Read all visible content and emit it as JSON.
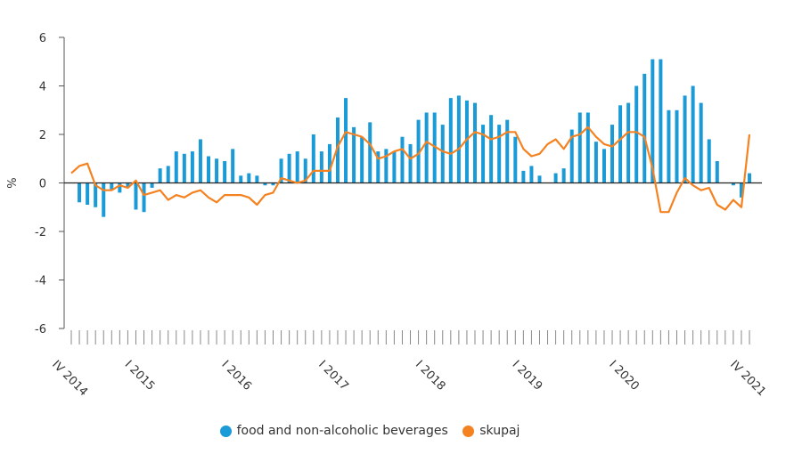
{
  "chart_data": {
    "type": "bar+line",
    "ylabel": "%",
    "ylim": [
      -6,
      6
    ],
    "yticks": [
      6,
      4,
      2,
      0,
      -2,
      -4,
      -6
    ],
    "x_tick_labels": [
      "IV 2014",
      "I 2015",
      "I 2016",
      "I 2017",
      "I 2018",
      "I 2019",
      "I 2020",
      "IV 2021"
    ],
    "x_tick_label_months": [
      "2014-04",
      "2015-01",
      "2016-01",
      "2017-01",
      "2018-01",
      "2019-01",
      "2020-01",
      "2021-04"
    ],
    "months": [
      "2014-04",
      "2014-05",
      "2014-06",
      "2014-07",
      "2014-08",
      "2014-09",
      "2014-10",
      "2014-11",
      "2014-12",
      "2015-01",
      "2015-02",
      "2015-03",
      "2015-04",
      "2015-05",
      "2015-06",
      "2015-07",
      "2015-08",
      "2015-09",
      "2015-10",
      "2015-11",
      "2015-12",
      "2016-01",
      "2016-02",
      "2016-03",
      "2016-04",
      "2016-05",
      "2016-06",
      "2016-07",
      "2016-08",
      "2016-09",
      "2016-10",
      "2016-11",
      "2016-12",
      "2017-01",
      "2017-02",
      "2017-03",
      "2017-04",
      "2017-05",
      "2017-06",
      "2017-07",
      "2017-08",
      "2017-09",
      "2017-10",
      "2017-11",
      "2017-12",
      "2018-01",
      "2018-02",
      "2018-03",
      "2018-04",
      "2018-05",
      "2018-06",
      "2018-07",
      "2018-08",
      "2018-09",
      "2018-10",
      "2018-11",
      "2018-12",
      "2019-01",
      "2019-02",
      "2019-03",
      "2019-04",
      "2019-05",
      "2019-06",
      "2019-07",
      "2019-08",
      "2019-09",
      "2019-10",
      "2019-11",
      "2019-12",
      "2020-01",
      "2020-02",
      "2020-03",
      "2020-04",
      "2020-05",
      "2020-06",
      "2020-07",
      "2020-08",
      "2020-09",
      "2020-10",
      "2020-11",
      "2020-12",
      "2021-01",
      "2021-02",
      "2021-03",
      "2021-04"
    ],
    "series": [
      {
        "name": "food and non-alcoholic beverages",
        "type": "bar",
        "color": "#1a9bd7",
        "values": [
          0,
          -0.8,
          -0.9,
          -1.0,
          -1.4,
          -0.3,
          -0.4,
          -0.2,
          -1.1,
          -1.2,
          -0.2,
          0.6,
          0.7,
          1.3,
          1.2,
          1.3,
          1.8,
          1.1,
          1.0,
          0.9,
          1.4,
          0.3,
          0.4,
          0.3,
          -0.1,
          -0.1,
          1.0,
          1.2,
          1.3,
          1.0,
          2.0,
          1.3,
          1.6,
          2.7,
          3.5,
          2.3,
          1.9,
          2.5,
          1.3,
          1.4,
          1.3,
          1.9,
          1.6,
          2.6,
          2.9,
          2.9,
          2.4,
          3.5,
          3.6,
          3.4,
          3.3,
          2.4,
          2.8,
          2.4,
          2.6,
          1.9,
          0.5,
          0.7,
          0.3,
          0,
          0.4,
          0.6,
          2.2,
          2.9,
          2.9,
          1.7,
          1.4,
          2.4,
          3.2,
          3.3,
          4.0,
          4.5,
          5.1,
          5.1,
          3.0,
          3.0,
          3.6,
          4.0,
          3.3,
          1.8,
          0.9,
          0,
          -0.1,
          -0.6,
          0.4
        ]
      },
      {
        "name": "skupaj",
        "type": "line",
        "color": "#f58220",
        "values": [
          0.4,
          0.7,
          0.8,
          -0.1,
          -0.3,
          -0.3,
          -0.1,
          -0.2,
          0.1,
          -0.5,
          -0.4,
          -0.3,
          -0.7,
          -0.5,
          -0.6,
          -0.4,
          -0.3,
          -0.6,
          -0.8,
          -0.5,
          -0.5,
          -0.5,
          -0.6,
          -0.9,
          -0.5,
          -0.4,
          0.2,
          0.1,
          0.0,
          0.1,
          0.5,
          0.5,
          0.5,
          1.5,
          2.1,
          2.0,
          1.9,
          1.6,
          1.0,
          1.1,
          1.3,
          1.4,
          1.0,
          1.2,
          1.7,
          1.5,
          1.3,
          1.2,
          1.4,
          1.8,
          2.1,
          2.0,
          1.8,
          1.9,
          2.1,
          2.1,
          1.4,
          1.1,
          1.2,
          1.6,
          1.8,
          1.4,
          1.9,
          2.0,
          2.3,
          1.9,
          1.6,
          1.5,
          1.8,
          2.1,
          2.1,
          1.9,
          0.6,
          -1.2,
          -1.2,
          -0.4,
          0.2,
          -0.1,
          -0.3,
          -0.2,
          -0.9,
          -1.1,
          -0.7,
          -1.0,
          2.0
        ]
      }
    ],
    "legend": {
      "position": "bottom-center"
    },
    "grid": false
  }
}
